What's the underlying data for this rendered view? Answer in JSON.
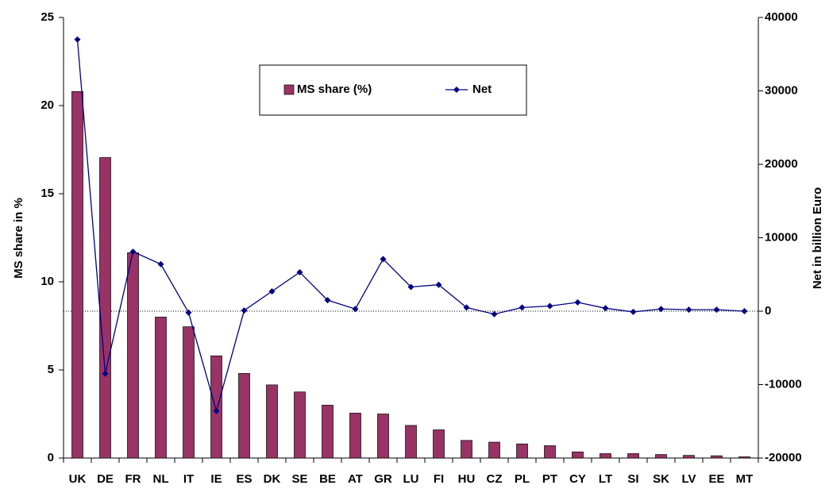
{
  "chart_data": {
    "type": "bar_line",
    "categories": [
      "UK",
      "DE",
      "FR",
      "NL",
      "IT",
      "IE",
      "ES",
      "DK",
      "SE",
      "BE",
      "AT",
      "GR",
      "LU",
      "FI",
      "HU",
      "CZ",
      "PL",
      "PT",
      "CY",
      "LT",
      "SI",
      "SK",
      "LV",
      "EE",
      "MT"
    ],
    "series": [
      {
        "name": "MS share (%)",
        "type": "bar",
        "color": "#993366",
        "values": [
          20.8,
          17.05,
          11.65,
          8.0,
          7.45,
          5.8,
          4.8,
          4.15,
          3.75,
          3.0,
          2.55,
          2.5,
          1.85,
          1.6,
          1.0,
          0.9,
          0.8,
          0.7,
          0.35,
          0.25,
          0.25,
          0.2,
          0.15,
          0.13,
          0.07
        ]
      },
      {
        "name": "Net",
        "type": "line",
        "axis": "y2",
        "color": "#000080",
        "values": [
          37000,
          -8500,
          8100,
          6400,
          -200,
          -13600,
          100,
          2700,
          5300,
          1500,
          300,
          7100,
          3300,
          3600,
          500,
          -400,
          500,
          700,
          1200,
          400,
          -100,
          300,
          200,
          200,
          0
        ]
      }
    ],
    "ylabel": "MS share in %",
    "y2label": "Net in billion Euro",
    "ylim": [
      0,
      25
    ],
    "yticks": [
      0,
      5,
      10,
      15,
      20,
      25
    ],
    "y2lim": [
      -20000,
      40000
    ],
    "y2ticks": [
      -20000,
      -10000,
      0,
      10000,
      20000,
      30000,
      40000
    ],
    "legend": "top"
  }
}
